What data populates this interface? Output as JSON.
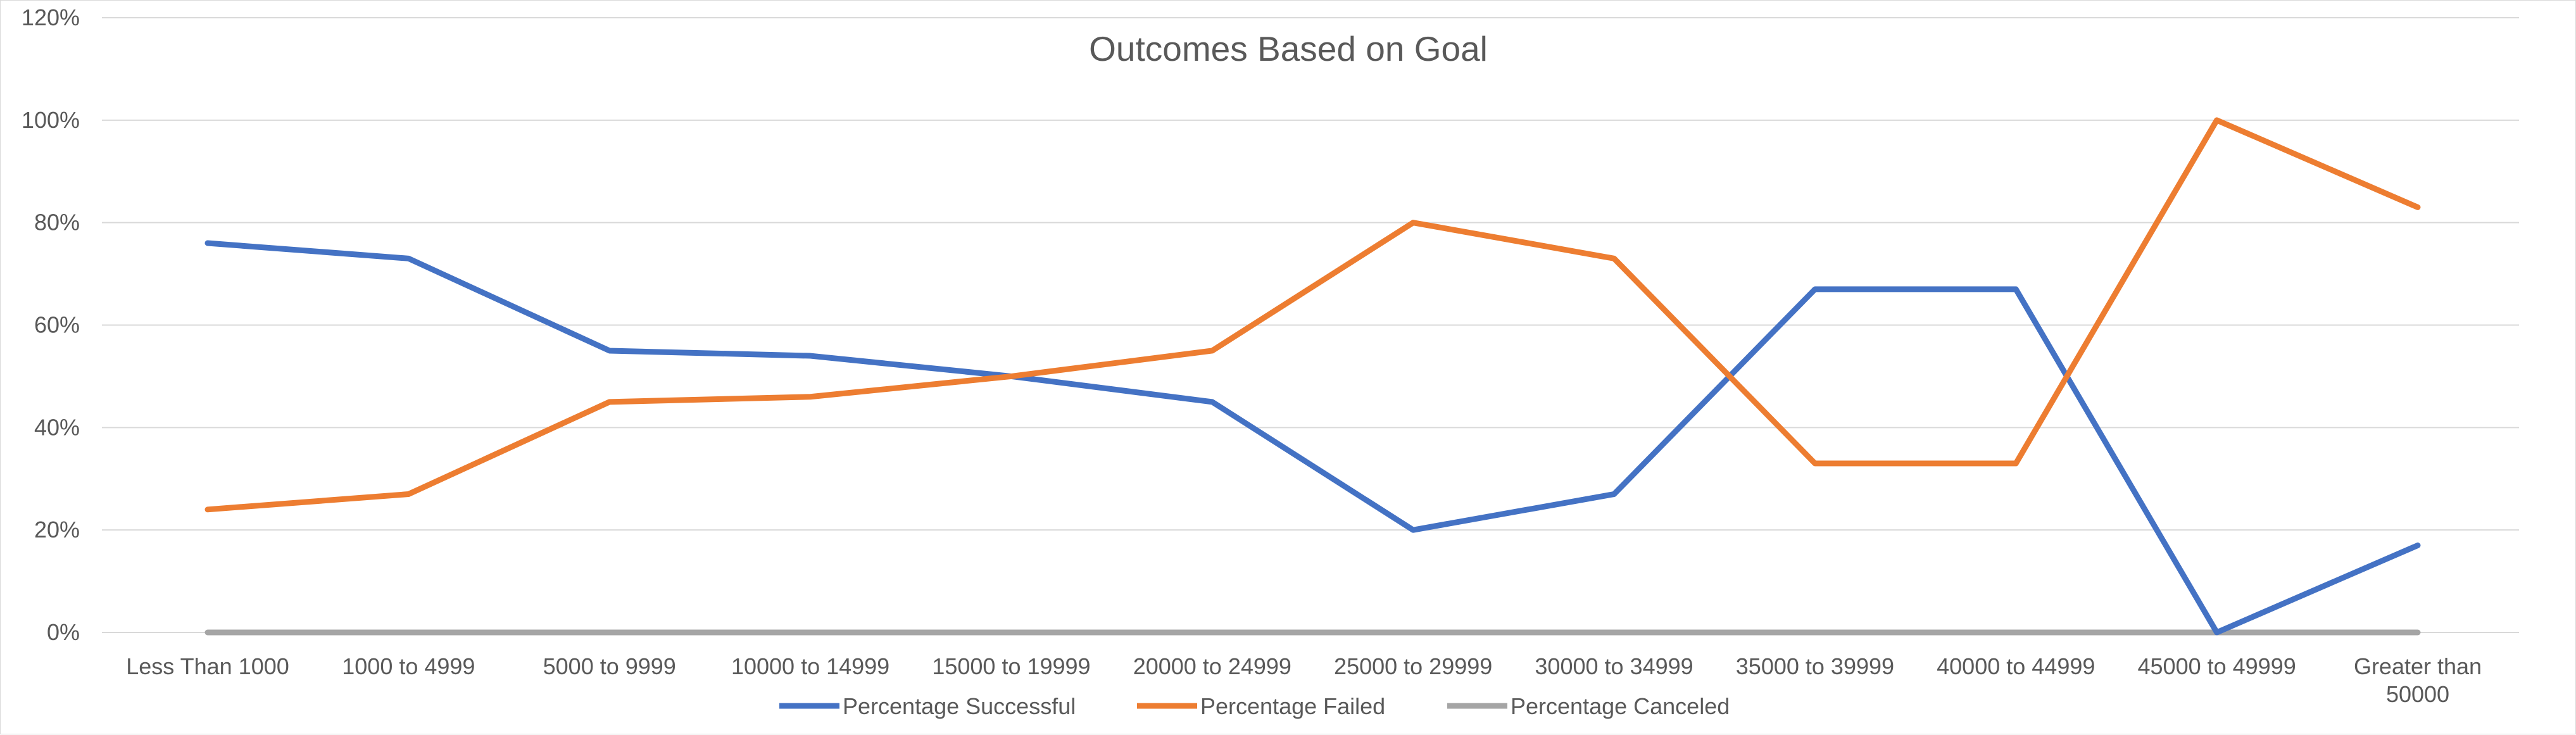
{
  "chart_data": {
    "type": "line",
    "title": "Outcomes Based on Goal",
    "xlabel": "",
    "ylabel": "",
    "categories": [
      "Less Than 1000",
      "1000 to 4999",
      "5000 to 9999",
      "10000 to 14999",
      "15000 to 19999",
      "20000 to 24999",
      "25000 to 29999",
      "30000 to 34999",
      "35000 to 39999",
      "40000 to 44999",
      "45000 to 49999",
      "Greater than 50000"
    ],
    "category_lines": [
      [
        "Less Than 1000"
      ],
      [
        "1000 to 4999"
      ],
      [
        "5000 to 9999"
      ],
      [
        "10000 to 14999"
      ],
      [
        "15000 to 19999"
      ],
      [
        "20000 to 24999"
      ],
      [
        "25000 to 29999"
      ],
      [
        "30000 to 34999"
      ],
      [
        "35000 to 39999"
      ],
      [
        "40000 to 44999"
      ],
      [
        "45000 to 49999"
      ],
      [
        "Greater than",
        "50000"
      ]
    ],
    "series": [
      {
        "name": "Percentage Successful",
        "color": "#4472c4",
        "values": [
          0.76,
          0.73,
          0.55,
          0.54,
          0.5,
          0.45,
          0.2,
          0.27,
          0.67,
          0.67,
          0.0,
          0.17
        ]
      },
      {
        "name": "Percentage Failed",
        "color": "#ed7d31",
        "values": [
          0.24,
          0.27,
          0.45,
          0.46,
          0.5,
          0.55,
          0.8,
          0.73,
          0.33,
          0.33,
          1.0,
          0.83
        ]
      },
      {
        "name": "Percentage Canceled",
        "color": "#a5a5a5",
        "values": [
          0,
          0,
          0,
          0,
          0,
          0,
          0,
          0,
          0,
          0,
          0,
          0
        ]
      }
    ],
    "ylim": [
      0,
      1.2
    ],
    "yticks": [
      0,
      0.2,
      0.4,
      0.6,
      0.8,
      1.0,
      1.2
    ],
    "ytick_labels": [
      "0%",
      "20%",
      "40%",
      "60%",
      "80%",
      "100%",
      "120%"
    ],
    "grid": true,
    "legend_position": "bottom"
  }
}
